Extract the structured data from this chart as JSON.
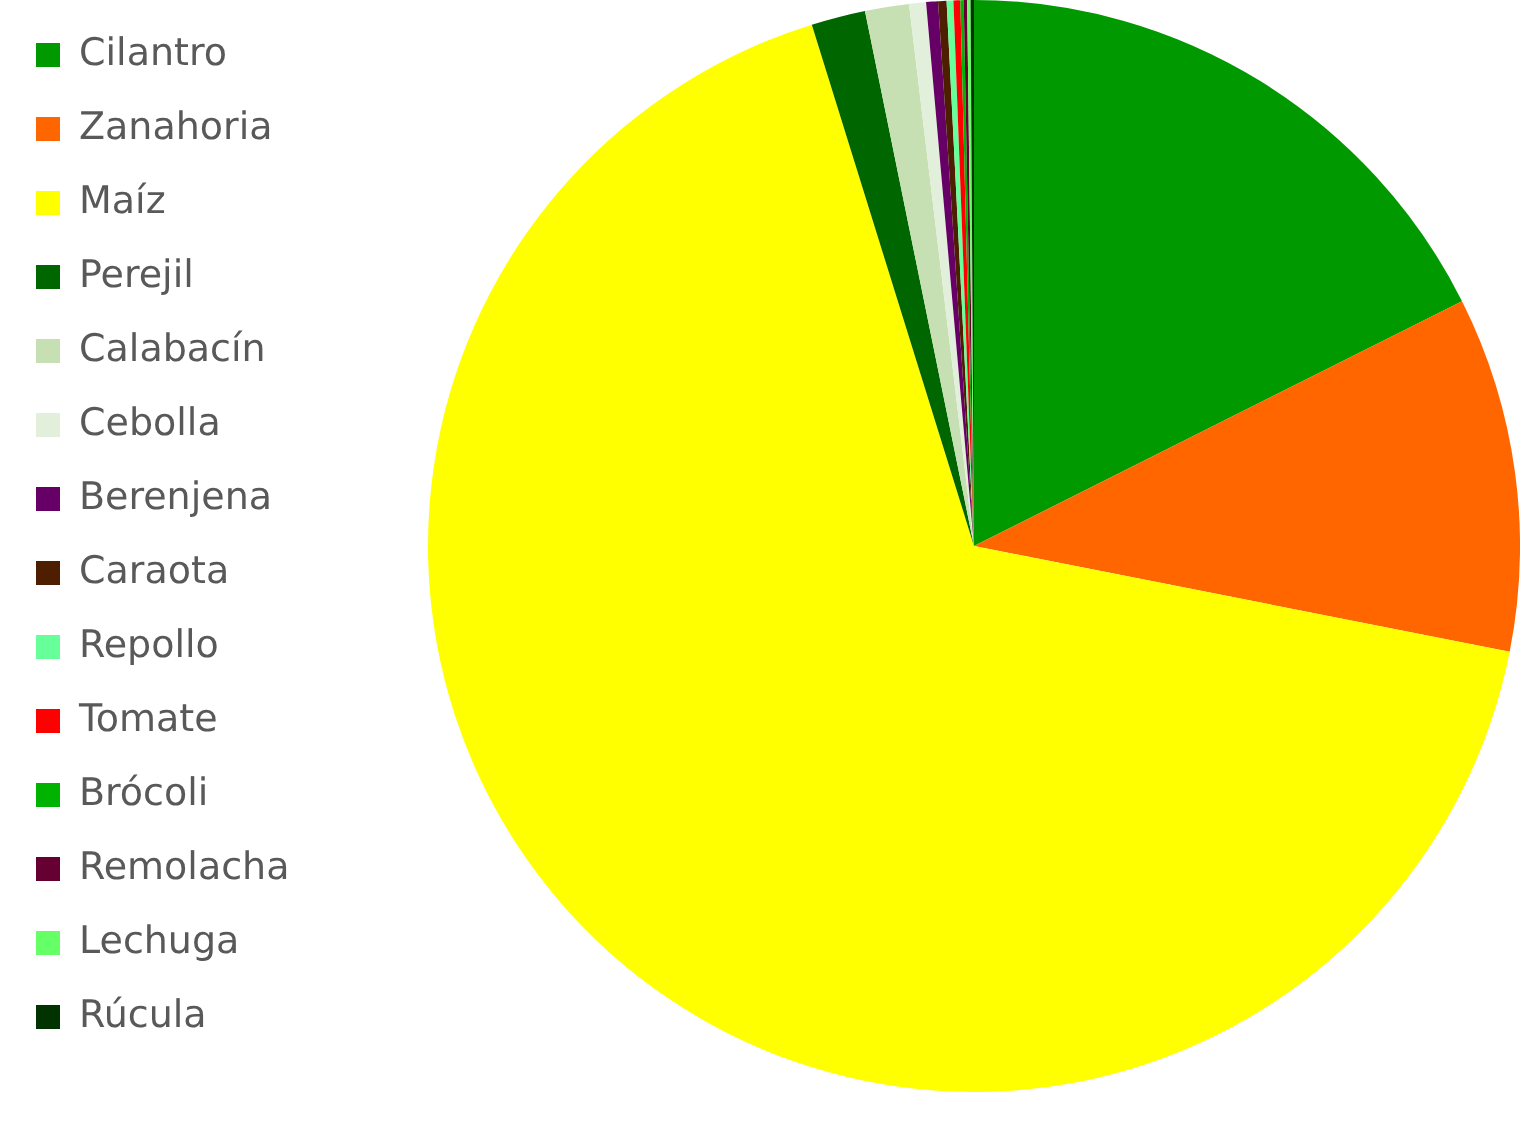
{
  "chart_data": {
    "type": "pie",
    "categories": [
      "Cilantro",
      "Zanahoria",
      "Maíz",
      "Perejil",
      "Calabacín",
      "Cebolla",
      "Berenjena",
      "Caraota",
      "Repollo",
      "Tomate",
      "Brócoli",
      "Remolacha",
      "Lechuga",
      "Rúcula"
    ],
    "values": [
      17.6,
      10.5,
      67.1,
      1.6,
      1.3,
      0.5,
      0.35,
      0.25,
      0.2,
      0.2,
      0.1,
      0.1,
      0.1,
      0.1
    ],
    "colors": [
      "#009900",
      "#ff6600",
      "#ffff00",
      "#006600",
      "#c6e0b4",
      "#e2efda",
      "#660066",
      "#4d1f00",
      "#66ff99",
      "#ff0000",
      "#00b300",
      "#660033",
      "#66ff66",
      "#003300"
    ],
    "legend": "left"
  }
}
